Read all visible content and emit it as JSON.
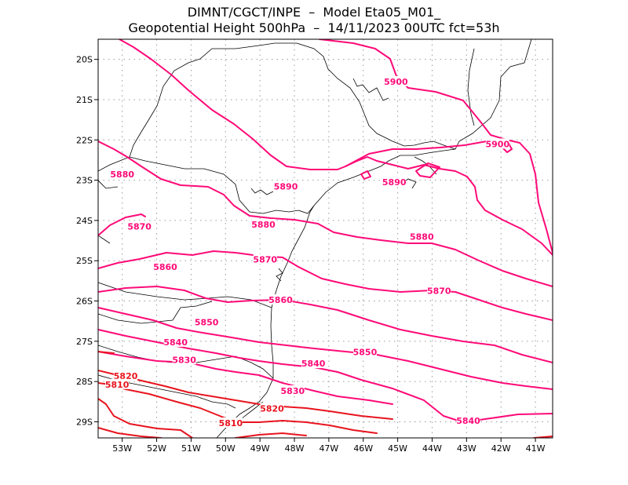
{
  "title_line1": "DIMNT/CGCT/INPE  –  Model Eta05_M01_",
  "title_line2": "Geopotential Height 500hPa  –  14/11/2023 00UTC fct=53h",
  "map": {
    "lon_range": [
      -53.7,
      -40.5
    ],
    "lat_range": [
      -29.4,
      -19.5
    ],
    "lon_ticks": [
      {
        "lon": -53,
        "label": "53W"
      },
      {
        "lon": -52,
        "label": "52W"
      },
      {
        "lon": -51,
        "label": "51W"
      },
      {
        "lon": -50,
        "label": "50W"
      },
      {
        "lon": -49,
        "label": "49W"
      },
      {
        "lon": -48,
        "label": "48W"
      },
      {
        "lon": -47,
        "label": "47W"
      },
      {
        "lon": -46,
        "label": "46W"
      },
      {
        "lon": -45,
        "label": "45W"
      },
      {
        "lon": -44,
        "label": "44W"
      },
      {
        "lon": -43,
        "label": "43W"
      },
      {
        "lon": -42,
        "label": "42W"
      },
      {
        "lon": -41,
        "label": "41W"
      }
    ],
    "lat_ticks": [
      {
        "lat": -20,
        "label": "20S"
      },
      {
        "lat": -21,
        "label": "21S"
      },
      {
        "lat": -22,
        "label": "22S"
      },
      {
        "lat": -23,
        "label": "23S"
      },
      {
        "lat": -24,
        "label": "24S"
      },
      {
        "lat": -25,
        "label": "25S"
      },
      {
        "lat": -26,
        "label": "26S"
      },
      {
        "lat": -27,
        "label": "27S"
      },
      {
        "lat": -28,
        "label": "28S"
      },
      {
        "lat": -29,
        "label": "29S"
      }
    ],
    "gridlines": true,
    "contour_labels": [
      {
        "text": "5900",
        "lon": -45.05,
        "lat": -20.55
      },
      {
        "text": "5900",
        "lon": -42.1,
        "lat": -22.1
      },
      {
        "text": "5880",
        "lon": -53.0,
        "lat": -22.85
      },
      {
        "text": "5890",
        "lon": -48.25,
        "lat": -23.15
      },
      {
        "text": "5890",
        "lon": -45.1,
        "lat": -23.05
      },
      {
        "text": "5870",
        "lon": -52.5,
        "lat": -24.15
      },
      {
        "text": "5880",
        "lon": -48.9,
        "lat": -24.1
      },
      {
        "text": "5880",
        "lon": -44.3,
        "lat": -24.4
      },
      {
        "text": "5870",
        "lon": -48.85,
        "lat": -24.97
      },
      {
        "text": "5860",
        "lon": -51.75,
        "lat": -25.15
      },
      {
        "text": "5870",
        "lon": -43.8,
        "lat": -25.75
      },
      {
        "text": "5860",
        "lon": -48.4,
        "lat": -25.97
      },
      {
        "text": "5850",
        "lon": -50.55,
        "lat": -26.53
      },
      {
        "text": "5840",
        "lon": -51.45,
        "lat": -27.02
      },
      {
        "text": "5850",
        "lon": -45.95,
        "lat": -27.27
      },
      {
        "text": "5830",
        "lon": -51.2,
        "lat": -27.46
      },
      {
        "text": "5840",
        "lon": -47.45,
        "lat": -27.55
      },
      {
        "text": "5820",
        "lon": -52.9,
        "lat": -27.86
      },
      {
        "text": "5810",
        "lon": -53.15,
        "lat": -28.07
      },
      {
        "text": "5830",
        "lon": -48.05,
        "lat": -28.23
      },
      {
        "text": "5820",
        "lon": -48.65,
        "lat": -28.67
      },
      {
        "text": "5840",
        "lon": -42.95,
        "lat": -28.97
      },
      {
        "text": "5810",
        "lon": -49.85,
        "lat": -29.03
      }
    ],
    "colors": {
      "contour_high": "#ff0a78",
      "contour_low": "#e8141e",
      "coast": "#000000",
      "grid": "#9a9a9a"
    }
  }
}
